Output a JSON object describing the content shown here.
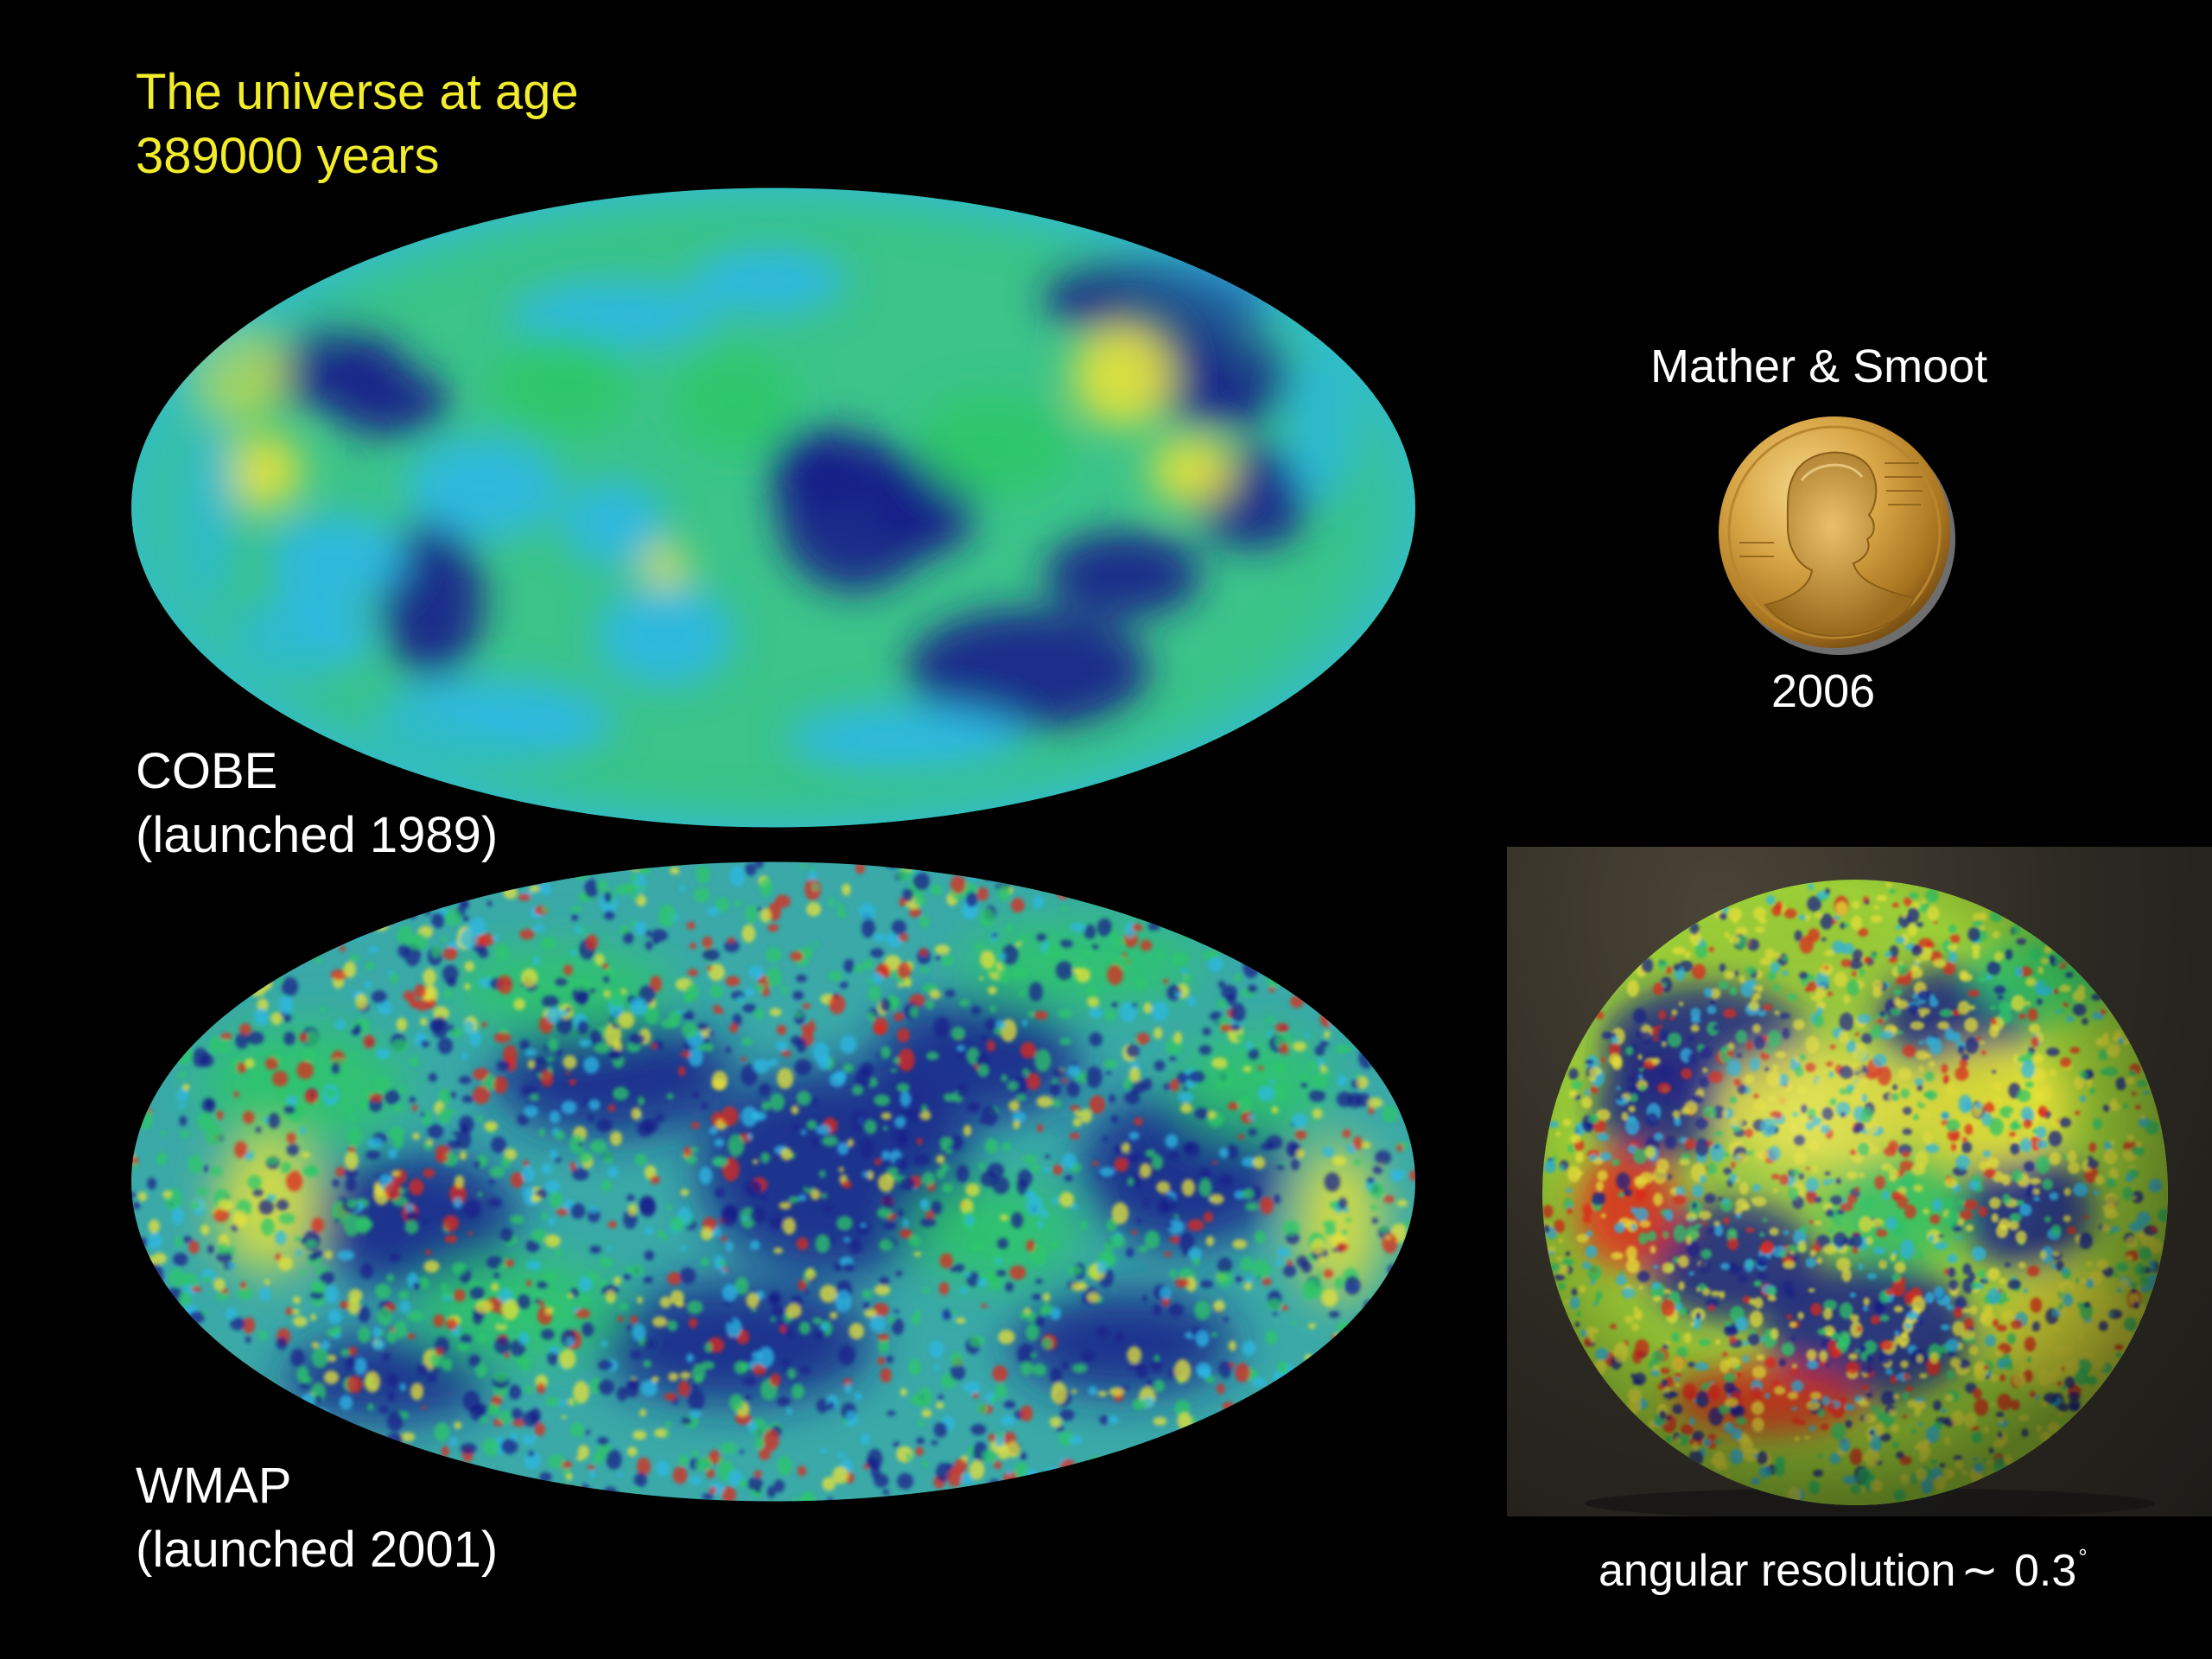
{
  "title": {
    "line1": "The universe at age",
    "line2": "389000 years"
  },
  "cobe": {
    "name": "COBE",
    "launch": "(launched 1989)"
  },
  "wmap": {
    "name": "WMAP",
    "launch": "(launched 2001)"
  },
  "nobel": {
    "laureates": "Mather & Smoot",
    "year": "2006"
  },
  "resolution": {
    "label": "angular resolution",
    "tilde": "∼",
    "value": "0.3",
    "unit": "°"
  },
  "colors": {
    "background": "#000000",
    "title": "#f2ec2a",
    "caption": "#ffffff",
    "cmb_cold": "#1a1f8a",
    "cmb_cool": "#2db8e6",
    "cmb_mid": "#2fc768",
    "cmb_warm": "#e8e23a",
    "cmb_hot": "#e02a1e",
    "medal_gold": "#c8952e"
  }
}
